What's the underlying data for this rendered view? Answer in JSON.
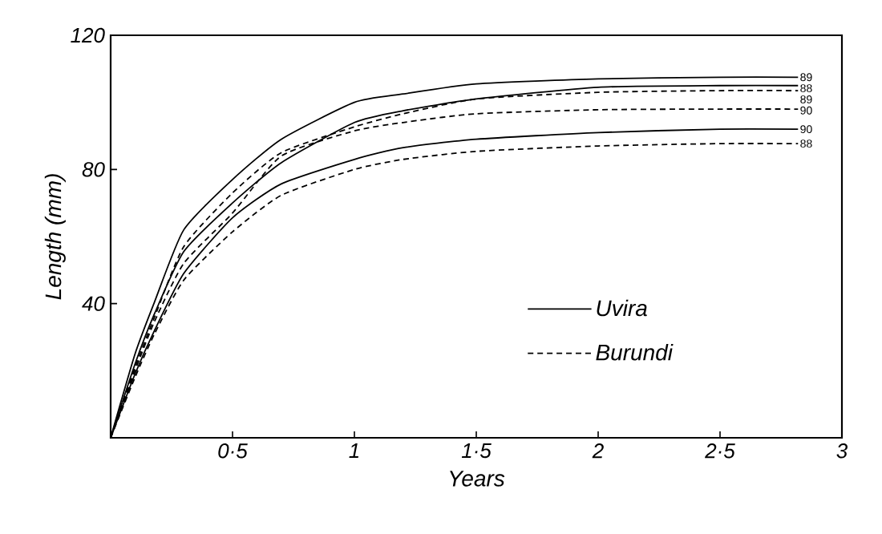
{
  "chart_data": {
    "type": "line",
    "xlabel": "Years",
    "ylabel": "Length (mm)",
    "xlim": [
      0,
      3
    ],
    "ylim": [
      0,
      120
    ],
    "xticks": [
      {
        "value": 0.5,
        "label": "0·5"
      },
      1,
      {
        "value": 1.5,
        "label": "1·5"
      },
      2,
      {
        "value": 2.5,
        "label": "2·5"
      },
      3
    ],
    "yticks": [
      40,
      80,
      120
    ],
    "legend": "bottom right",
    "marker": "none",
    "x": [
      0,
      0.1,
      0.18,
      0.3,
      0.5,
      0.7,
      1.0,
      1.2,
      1.5,
      2.0,
      2.5,
      2.82
    ],
    "series": [
      {
        "name": "Uvira",
        "color": "#000000",
        "line_style": "solid",
        "values": [
          0,
          25,
          40.5,
          62,
          77,
          89,
          100,
          102.5,
          105.5,
          107,
          107.5,
          107.5
        ]
      },
      {
        "color": "#000000",
        "line_style": "solid",
        "values": [
          0,
          22,
          37,
          55.5,
          70,
          82,
          94,
          97.5,
          101,
          104.5,
          105,
          105
        ]
      },
      {
        "name": "Burundi",
        "color": "#000000",
        "line_style": "dashed",
        "values": [
          0,
          21,
          36,
          57,
          73,
          85,
          92.7,
          96.6,
          101,
          103,
          103.5,
          103.5
        ]
      },
      {
        "color": "#000000",
        "line_style": "dashed",
        "values": [
          0,
          20,
          34.7,
          52,
          67,
          84,
          91.5,
          94,
          96.6,
          97.8,
          98,
          98
        ]
      },
      {
        "color": "#000000",
        "line_style": "solid",
        "values": [
          0,
          19,
          32,
          49,
          65.6,
          75.7,
          83,
          86.5,
          89,
          91,
          92,
          92
        ]
      },
      {
        "color": "#000000",
        "line_style": "dashed",
        "values": [
          0,
          18,
          31,
          47,
          61.4,
          72.3,
          80,
          83,
          85.4,
          87,
          87.7,
          87.7
        ]
      }
    ],
    "annotations": [
      "89",
      "88",
      "89",
      "90",
      "90",
      "88"
    ]
  }
}
